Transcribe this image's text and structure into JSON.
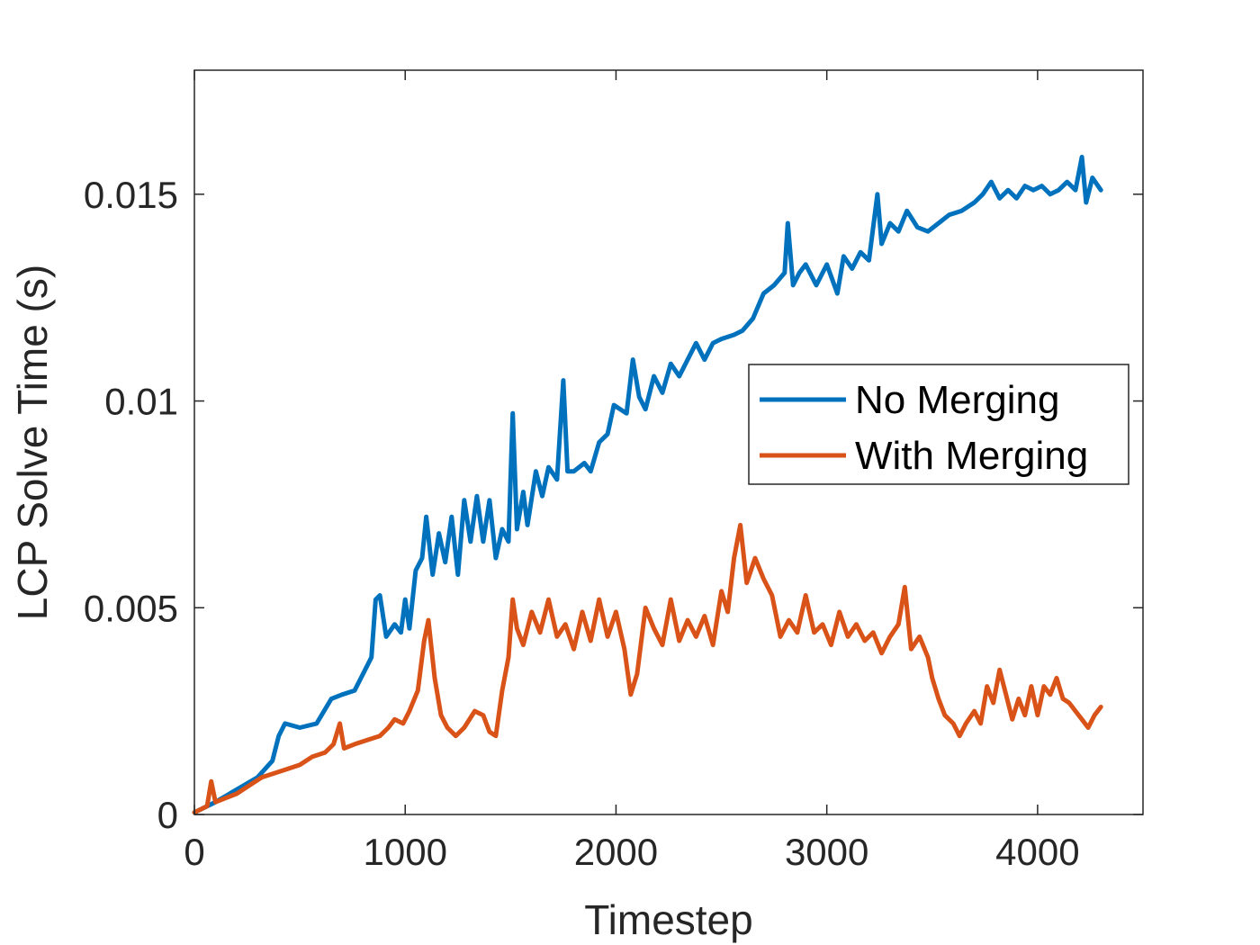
{
  "chart_data": {
    "type": "line",
    "title": "",
    "xlabel": "Timestep",
    "ylabel": "LCP Solve Time (s)",
    "xlim": [
      0,
      4500
    ],
    "ylim": [
      0,
      0.018
    ],
    "xticks": [
      0,
      1000,
      2000,
      3000,
      4000
    ],
    "xtick_labels": [
      "0",
      "1000",
      "2000",
      "3000",
      "4000"
    ],
    "yticks": [
      0,
      0.005,
      0.01,
      0.015
    ],
    "ytick_labels": [
      "0",
      "0.005",
      "0.01",
      "0.015"
    ],
    "grid": false,
    "legend_position": "right",
    "series": [
      {
        "name": "No Merging",
        "color": "#0072BD",
        "points": [
          [
            0,
            5e-05
          ],
          [
            100,
            0.0003
          ],
          [
            200,
            0.0006
          ],
          [
            300,
            0.0009
          ],
          [
            370,
            0.0013
          ],
          [
            400,
            0.0019
          ],
          [
            430,
            0.0022
          ],
          [
            500,
            0.0021
          ],
          [
            580,
            0.0022
          ],
          [
            650,
            0.0028
          ],
          [
            700,
            0.0029
          ],
          [
            760,
            0.003
          ],
          [
            800,
            0.0034
          ],
          [
            840,
            0.0038
          ],
          [
            860,
            0.0052
          ],
          [
            880,
            0.0053
          ],
          [
            910,
            0.0043
          ],
          [
            950,
            0.0046
          ],
          [
            980,
            0.0044
          ],
          [
            1000,
            0.0052
          ],
          [
            1020,
            0.0045
          ],
          [
            1050,
            0.0059
          ],
          [
            1080,
            0.0062
          ],
          [
            1100,
            0.0072
          ],
          [
            1130,
            0.0058
          ],
          [
            1160,
            0.0068
          ],
          [
            1190,
            0.0061
          ],
          [
            1220,
            0.0072
          ],
          [
            1250,
            0.0058
          ],
          [
            1280,
            0.0076
          ],
          [
            1310,
            0.0066
          ],
          [
            1340,
            0.0077
          ],
          [
            1370,
            0.0066
          ],
          [
            1400,
            0.0076
          ],
          [
            1430,
            0.0062
          ],
          [
            1460,
            0.0069
          ],
          [
            1490,
            0.0066
          ],
          [
            1510,
            0.0097
          ],
          [
            1530,
            0.0069
          ],
          [
            1560,
            0.0078
          ],
          [
            1580,
            0.007
          ],
          [
            1620,
            0.0083
          ],
          [
            1650,
            0.0077
          ],
          [
            1680,
            0.0084
          ],
          [
            1720,
            0.0081
          ],
          [
            1750,
            0.0105
          ],
          [
            1770,
            0.0083
          ],
          [
            1800,
            0.0083
          ],
          [
            1850,
            0.0085
          ],
          [
            1880,
            0.0083
          ],
          [
            1920,
            0.009
          ],
          [
            1960,
            0.0092
          ],
          [
            1990,
            0.0099
          ],
          [
            2050,
            0.0097
          ],
          [
            2080,
            0.011
          ],
          [
            2110,
            0.0101
          ],
          [
            2140,
            0.0098
          ],
          [
            2180,
            0.0106
          ],
          [
            2220,
            0.0102
          ],
          [
            2260,
            0.0109
          ],
          [
            2300,
            0.0106
          ],
          [
            2350,
            0.0111
          ],
          [
            2380,
            0.0114
          ],
          [
            2420,
            0.011
          ],
          [
            2460,
            0.0114
          ],
          [
            2500,
            0.0115
          ],
          [
            2560,
            0.0116
          ],
          [
            2600,
            0.0117
          ],
          [
            2650,
            0.012
          ],
          [
            2700,
            0.0126
          ],
          [
            2750,
            0.0128
          ],
          [
            2800,
            0.0131
          ],
          [
            2815,
            0.0143
          ],
          [
            2840,
            0.0128
          ],
          [
            2870,
            0.0131
          ],
          [
            2900,
            0.0133
          ],
          [
            2950,
            0.0128
          ],
          [
            3000,
            0.0133
          ],
          [
            3050,
            0.0126
          ],
          [
            3080,
            0.0135
          ],
          [
            3120,
            0.0132
          ],
          [
            3160,
            0.0136
          ],
          [
            3200,
            0.0134
          ],
          [
            3240,
            0.015
          ],
          [
            3260,
            0.0138
          ],
          [
            3300,
            0.0143
          ],
          [
            3340,
            0.0141
          ],
          [
            3380,
            0.0146
          ],
          [
            3430,
            0.0142
          ],
          [
            3480,
            0.0141
          ],
          [
            3530,
            0.0143
          ],
          [
            3580,
            0.0145
          ],
          [
            3640,
            0.0146
          ],
          [
            3700,
            0.0148
          ],
          [
            3740,
            0.015
          ],
          [
            3780,
            0.0153
          ],
          [
            3820,
            0.0149
          ],
          [
            3860,
            0.0151
          ],
          [
            3900,
            0.0149
          ],
          [
            3940,
            0.0152
          ],
          [
            3980,
            0.0151
          ],
          [
            4020,
            0.0152
          ],
          [
            4060,
            0.015
          ],
          [
            4100,
            0.0151
          ],
          [
            4140,
            0.0153
          ],
          [
            4180,
            0.0151
          ],
          [
            4210,
            0.0159
          ],
          [
            4230,
            0.0148
          ],
          [
            4260,
            0.0154
          ],
          [
            4300,
            0.0151
          ]
        ]
      },
      {
        "name": "With Merging",
        "color": "#D95319",
        "points": [
          [
            0,
            5e-05
          ],
          [
            60,
            0.0002
          ],
          [
            80,
            0.0008
          ],
          [
            100,
            0.0003
          ],
          [
            150,
            0.0004
          ],
          [
            200,
            0.0005
          ],
          [
            260,
            0.0007
          ],
          [
            320,
            0.0009
          ],
          [
            380,
            0.001
          ],
          [
            440,
            0.0011
          ],
          [
            500,
            0.0012
          ],
          [
            560,
            0.0014
          ],
          [
            620,
            0.0015
          ],
          [
            660,
            0.0017
          ],
          [
            690,
            0.0022
          ],
          [
            710,
            0.0016
          ],
          [
            760,
            0.0017
          ],
          [
            820,
            0.0018
          ],
          [
            880,
            0.0019
          ],
          [
            920,
            0.0021
          ],
          [
            950,
            0.0023
          ],
          [
            990,
            0.0022
          ],
          [
            1020,
            0.0025
          ],
          [
            1060,
            0.003
          ],
          [
            1090,
            0.0042
          ],
          [
            1110,
            0.0047
          ],
          [
            1140,
            0.0033
          ],
          [
            1170,
            0.0024
          ],
          [
            1200,
            0.0021
          ],
          [
            1240,
            0.0019
          ],
          [
            1280,
            0.0021
          ],
          [
            1330,
            0.0025
          ],
          [
            1370,
            0.0024
          ],
          [
            1400,
            0.002
          ],
          [
            1430,
            0.0019
          ],
          [
            1460,
            0.003
          ],
          [
            1490,
            0.0038
          ],
          [
            1510,
            0.0052
          ],
          [
            1530,
            0.0045
          ],
          [
            1560,
            0.0041
          ],
          [
            1600,
            0.0049
          ],
          [
            1640,
            0.0044
          ],
          [
            1680,
            0.0052
          ],
          [
            1720,
            0.0043
          ],
          [
            1760,
            0.0046
          ],
          [
            1800,
            0.004
          ],
          [
            1840,
            0.0049
          ],
          [
            1880,
            0.0042
          ],
          [
            1920,
            0.0052
          ],
          [
            1960,
            0.0043
          ],
          [
            2000,
            0.0049
          ],
          [
            2040,
            0.004
          ],
          [
            2070,
            0.0029
          ],
          [
            2100,
            0.0034
          ],
          [
            2140,
            0.005
          ],
          [
            2180,
            0.0045
          ],
          [
            2220,
            0.0041
          ],
          [
            2260,
            0.0052
          ],
          [
            2300,
            0.0042
          ],
          [
            2340,
            0.0047
          ],
          [
            2380,
            0.0043
          ],
          [
            2420,
            0.0048
          ],
          [
            2460,
            0.0041
          ],
          [
            2500,
            0.0054
          ],
          [
            2530,
            0.0049
          ],
          [
            2560,
            0.0062
          ],
          [
            2590,
            0.007
          ],
          [
            2620,
            0.0056
          ],
          [
            2660,
            0.0062
          ],
          [
            2700,
            0.0057
          ],
          [
            2740,
            0.0053
          ],
          [
            2780,
            0.0043
          ],
          [
            2820,
            0.0047
          ],
          [
            2860,
            0.0044
          ],
          [
            2900,
            0.0053
          ],
          [
            2940,
            0.0044
          ],
          [
            2980,
            0.0046
          ],
          [
            3020,
            0.0041
          ],
          [
            3060,
            0.0049
          ],
          [
            3100,
            0.0043
          ],
          [
            3140,
            0.0046
          ],
          [
            3180,
            0.0042
          ],
          [
            3220,
            0.0044
          ],
          [
            3260,
            0.0039
          ],
          [
            3300,
            0.0043
          ],
          [
            3340,
            0.0046
          ],
          [
            3370,
            0.0055
          ],
          [
            3400,
            0.004
          ],
          [
            3440,
            0.0043
          ],
          [
            3480,
            0.0038
          ],
          [
            3500,
            0.0033
          ],
          [
            3530,
            0.0028
          ],
          [
            3560,
            0.0024
          ],
          [
            3600,
            0.0022
          ],
          [
            3630,
            0.0019
          ],
          [
            3660,
            0.0022
          ],
          [
            3700,
            0.0025
          ],
          [
            3730,
            0.0022
          ],
          [
            3760,
            0.0031
          ],
          [
            3790,
            0.0027
          ],
          [
            3820,
            0.0035
          ],
          [
            3850,
            0.0029
          ],
          [
            3880,
            0.0023
          ],
          [
            3910,
            0.0028
          ],
          [
            3940,
            0.0024
          ],
          [
            3970,
            0.0031
          ],
          [
            4000,
            0.0024
          ],
          [
            4030,
            0.0031
          ],
          [
            4060,
            0.0029
          ],
          [
            4090,
            0.0033
          ],
          [
            4120,
            0.0028
          ],
          [
            4150,
            0.0027
          ],
          [
            4180,
            0.0025
          ],
          [
            4210,
            0.0023
          ],
          [
            4240,
            0.0021
          ],
          [
            4270,
            0.0024
          ],
          [
            4300,
            0.0026
          ]
        ]
      }
    ]
  }
}
